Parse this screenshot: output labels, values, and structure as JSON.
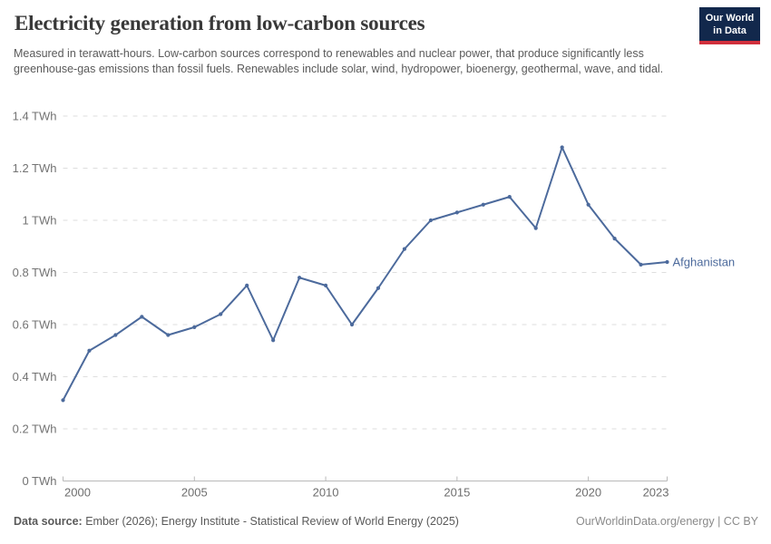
{
  "header": {
    "title": "Electricity generation from low-carbon sources",
    "subtitle": "Measured in terawatt-hours. Low-carbon sources correspond to renewables and nuclear power, that produce significantly less greenhouse-gas emissions than fossil fuels. Renewables include solar, wind, hydropower, bioenergy, geothermal, wave, and tidal.",
    "logo": {
      "line1": "Our World",
      "line2": "in Data"
    }
  },
  "chart_data": {
    "type": "line",
    "title": "Electricity generation from low-carbon sources",
    "unit": "TWh",
    "x": [
      2000,
      2001,
      2002,
      2003,
      2004,
      2005,
      2006,
      2007,
      2008,
      2009,
      2010,
      2011,
      2012,
      2013,
      2014,
      2015,
      2016,
      2017,
      2018,
      2019,
      2020,
      2021,
      2022,
      2023
    ],
    "series": [
      {
        "name": "Afghanistan",
        "values": [
          0.31,
          0.5,
          0.56,
          0.63,
          0.56,
          0.59,
          0.64,
          0.75,
          0.54,
          0.78,
          0.75,
          0.6,
          0.74,
          0.89,
          1.0,
          1.03,
          1.06,
          1.09,
          0.97,
          1.28,
          1.06,
          0.93,
          0.83,
          0.84
        ]
      }
    ],
    "xlim": [
      2000,
      2023
    ],
    "ylim": [
      0,
      1.4
    ],
    "yticks": [
      {
        "value": 0,
        "label": "0 TWh"
      },
      {
        "value": 0.2,
        "label": "0.2 TWh"
      },
      {
        "value": 0.4,
        "label": "0.4 TWh"
      },
      {
        "value": 0.6,
        "label": "0.6 TWh"
      },
      {
        "value": 0.8,
        "label": "0.8 TWh"
      },
      {
        "value": 1,
        "label": "1 TWh"
      },
      {
        "value": 1.2,
        "label": "1.2 TWh"
      },
      {
        "value": 1.4,
        "label": "1.4 TWh"
      }
    ],
    "xticks": [
      {
        "value": 2000,
        "label": "2000"
      },
      {
        "value": 2005,
        "label": "2005"
      },
      {
        "value": 2010,
        "label": "2010"
      },
      {
        "value": 2015,
        "label": "2015"
      },
      {
        "value": 2020,
        "label": "2020"
      },
      {
        "value": 2023,
        "label": "2023"
      }
    ],
    "grid": "horizontal-dashed",
    "legend_position": "end-of-line",
    "entity_label": "Afghanistan"
  },
  "footer": {
    "source_label": "Data source:",
    "source_text": " Ember (2026); Energy Institute - Statistical Review of World Energy (2025)",
    "credit": "OurWorldinData.org/energy | CC BY"
  },
  "colors": {
    "line": "#4c6a9c",
    "entity_label_text": "#4c6a9c",
    "gridline": "#dedede",
    "axis": "#b9b9b9",
    "ytick_text": "#737373",
    "xtick_text": "#6e6e6e",
    "logo_bg": "#12284c",
    "logo_accent": "#d12f3c"
  }
}
